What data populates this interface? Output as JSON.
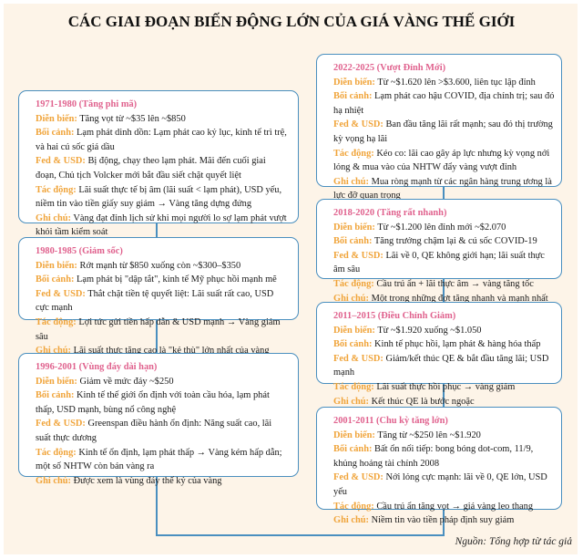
{
  "title": "CÁC GIAI ĐOẠN BIẾN ĐỘNG LỚN CỦA GIÁ VÀNG THẾ GIỚI",
  "labels": {
    "dien_bien": "Diễn biến:",
    "boi_canh": "Bối cảnh:",
    "fed_usd": "Fed & USD:",
    "tac_dong": "Tác động:",
    "ghi_chu": "Ghi chú:"
  },
  "periods": [
    {
      "title": "1971-1980 (Tăng phi mã)",
      "dien_bien": "Tăng vọt từ ~$35 lên ~$850",
      "boi_canh": "Lạm phát dinh dồn: Lạm phát cao kỷ lục, kinh tế trì trệ, và hai cú sốc giá dầu",
      "fed_usd": "Bị động, chạy theo lạm phát. Mãi đến cuối giai đoạn, Chủ tịch Volcker mới bắt đầu siết chặt quyết liệt",
      "tac_dong": "Lãi suất thực tế bị âm (lãi suất < lạm phát), USD yếu, niềm tin vào tiền giấy suy giảm → Vàng tăng dựng đứng",
      "ghi_chu": "Vàng đạt đỉnh lịch sử khi mọi người lo sợ lạm phát vượt khỏi tầm kiểm soát"
    },
    {
      "title": "1980-1985 (Giảm sốc)",
      "dien_bien": "Rớt mạnh từ $850 xuống còn ~$300–$350",
      "boi_canh": "Lạm phát bị \"dập tắt\", kinh tế Mỹ phục hồi mạnh mẽ",
      "fed_usd": "Thắt chặt tiền tệ quyết liệt: Lãi suất rất cao, USD cực mạnh",
      "tac_dong": "Lợi tức gửi tiền hấp dẫn & USD mạnh → Vàng giảm sâu",
      "ghi_chu": "Lãi suất thực tăng cao là \"kẻ thù\" lớn nhất của vàng"
    },
    {
      "title": "1996-2001 (Vùng đáy dài hạn)",
      "dien_bien": "Giảm về mức đáy ~$250",
      "boi_canh": "Kinh tế thế giới ổn định với toàn cầu hóa, lạm phát thấp, USD mạnh, bùng nổ công nghệ",
      "fed_usd": "Greenspan điều hành ổn định: Năng suất cao, lãi suất thực dương",
      "tac_dong": "Kinh tế ổn định, lạm phát thấp → Vàng kém hấp dẫn; một số NHTW còn bán vàng ra",
      "ghi_chu": "Được xem là vùng đáy thế kỷ của vàng"
    },
    {
      "title": "2022-2025 (Vượt Đỉnh Mới)",
      "dien_bien": "Từ ~$1.620 lên >$3.600, liên tục lập đỉnh",
      "boi_canh": "Lạm phát cao hậu COVID, địa chính trị; sau đó hạ nhiệt",
      "fed_usd": "Ban đầu tăng lãi rất mạnh; sau đó thị trường kỳ vọng hạ lãi",
      "tac_dong": "Kéo co: lãi cao gây áp lực nhưng kỳ vọng nới lỏng & mua vào của NHTW đẩy vàng vượt đỉnh",
      "ghi_chu": "Mua ròng mạnh từ các ngân hàng trung ương là lực đỡ quan trọng"
    },
    {
      "title": "2018-2020 (Tăng rất nhanh)",
      "dien_bien": "Từ ~$1.200 lên đỉnh mới ~$2.070",
      "boi_canh": "Tăng trưởng chậm lại & cú sốc COVID-19",
      "fed_usd": "Lãi về 0, QE không giới hạn; lãi suất thực âm sâu",
      "tac_dong": "Cầu trú ẩn + lãi thực âm → vàng tăng tốc",
      "ghi_chu": "Một trong những đợt tăng nhanh và mạnh nhất"
    },
    {
      "title": "2011–2015 (Điều Chỉnh Giảm)",
      "dien_bien": "Từ ~$1.920 xuống ~$1.050",
      "boi_canh": "Kinh tế phục hồi, lạm phát & hàng hóa thấp",
      "fed_usd": "Giảm/kết thúc QE & bắt đầu tăng lãi; USD mạnh",
      "tac_dong": "Lãi suất thực hồi phục → vàng giảm",
      "ghi_chu": "Kết thúc QE là bước ngoặc"
    },
    {
      "title": "2001-2011 (Chu kỳ tăng lớn)",
      "dien_bien": "Tăng từ ~$250 lên ~$1.920",
      "boi_canh": "Bất ổn nối tiếp: bong bóng dot-com, 11/9, khủng hoảng tài chính 2008",
      "fed_usd": "Nới lỏng cực mạnh: lãi về 0, QE lớn, USD yếu",
      "tac_dong": "Cầu trú ẩn tăng vọt → giá vàng leo thang",
      "ghi_chu": "Niềm tin vào tiền pháp định suy giảm"
    }
  ],
  "source": "Nguồn: Tổng hợp từ tác giả",
  "colors": {
    "background": "#fdf4e8",
    "border": "#4a8fbf",
    "period_title": "#e0628e",
    "label": "#f0a43a"
  }
}
